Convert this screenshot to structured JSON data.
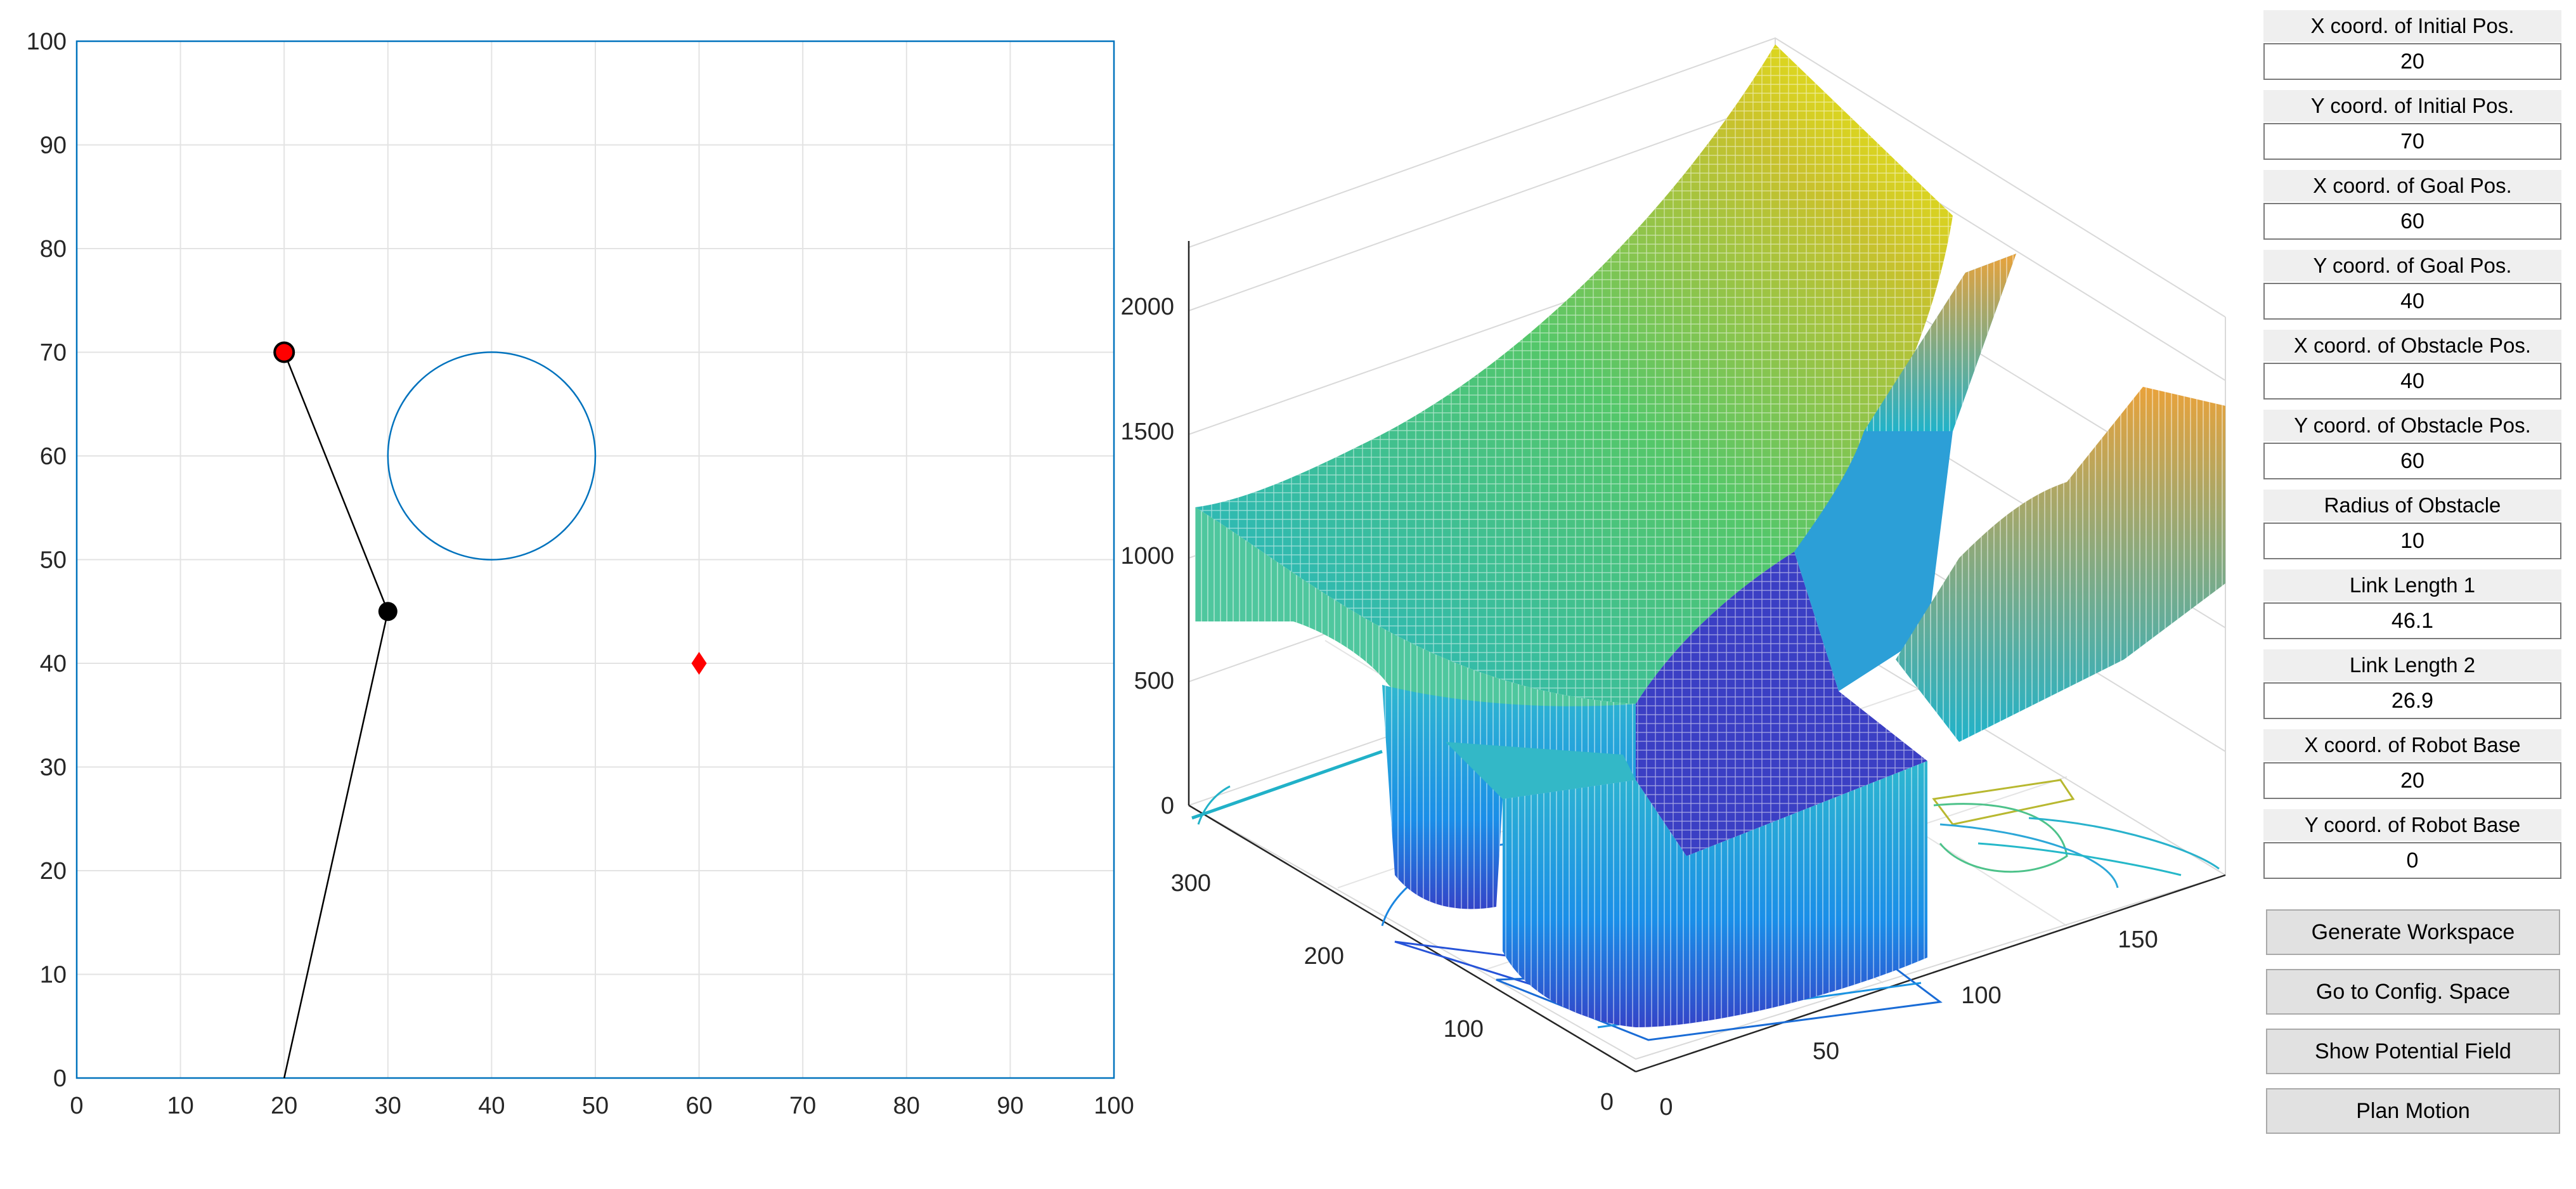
{
  "workspace_plot": {
    "x_ticks": [
      "0",
      "10",
      "20",
      "30",
      "40",
      "50",
      "60",
      "70",
      "80",
      "90",
      "100"
    ],
    "y_ticks": [
      "0",
      "10",
      "20",
      "30",
      "40",
      "50",
      "60",
      "70",
      "80",
      "90",
      "100"
    ],
    "xlim": [
      0,
      100
    ],
    "ylim": [
      0,
      100
    ],
    "grid": true,
    "robot_base": [
      20,
      0
    ],
    "elbow": [
      30,
      45
    ],
    "end_effector": [
      20,
      70
    ],
    "goal": [
      60,
      40
    ],
    "obstacle": {
      "cx": 40,
      "cy": 60,
      "r": 10
    },
    "colors": {
      "axis": "#0072bd",
      "link": "#000000",
      "joint": "#000000",
      "end_effector": "#ff0000",
      "goal": "#ff0000",
      "obstacle": "#0072bd",
      "grid": "#e3e3e3"
    }
  },
  "surface_plot": {
    "z_ticks": [
      "0",
      "500",
      "1000",
      "1500",
      "2000"
    ],
    "y_ticks": [
      "0",
      "100",
      "200",
      "300"
    ],
    "x_ticks": [
      "0",
      "50",
      "100",
      "150"
    ],
    "colormap": [
      "#3e26a8",
      "#2b70f8",
      "#12b4ca",
      "#53cc6e",
      "#c3c32e",
      "#f9fb0e"
    ]
  },
  "controls": {
    "fields": [
      {
        "label": "X coord. of Initial Pos.",
        "value": "20"
      },
      {
        "label": "Y coord. of Initial Pos.",
        "value": "70"
      },
      {
        "label": "X coord. of Goal Pos.",
        "value": "60"
      },
      {
        "label": "Y coord. of Goal Pos.",
        "value": "40"
      },
      {
        "label": "X coord. of Obstacle Pos.",
        "value": "40"
      },
      {
        "label": "Y coord. of Obstacle Pos.",
        "value": "60"
      },
      {
        "label": "Radius of Obstacle",
        "value": "10"
      },
      {
        "label": "Link Length 1",
        "value": "46.1"
      },
      {
        "label": "Link Length 2",
        "value": "26.9"
      },
      {
        "label": "X coord. of Robot Base",
        "value": "20"
      },
      {
        "label": "Y coord. of Robot Base",
        "value": "0"
      }
    ],
    "buttons": [
      {
        "label": "Generate Workspace"
      },
      {
        "label": "Go to Config. Space"
      },
      {
        "label": "Show Potential Field"
      },
      {
        "label": "Plan Motion"
      }
    ]
  }
}
